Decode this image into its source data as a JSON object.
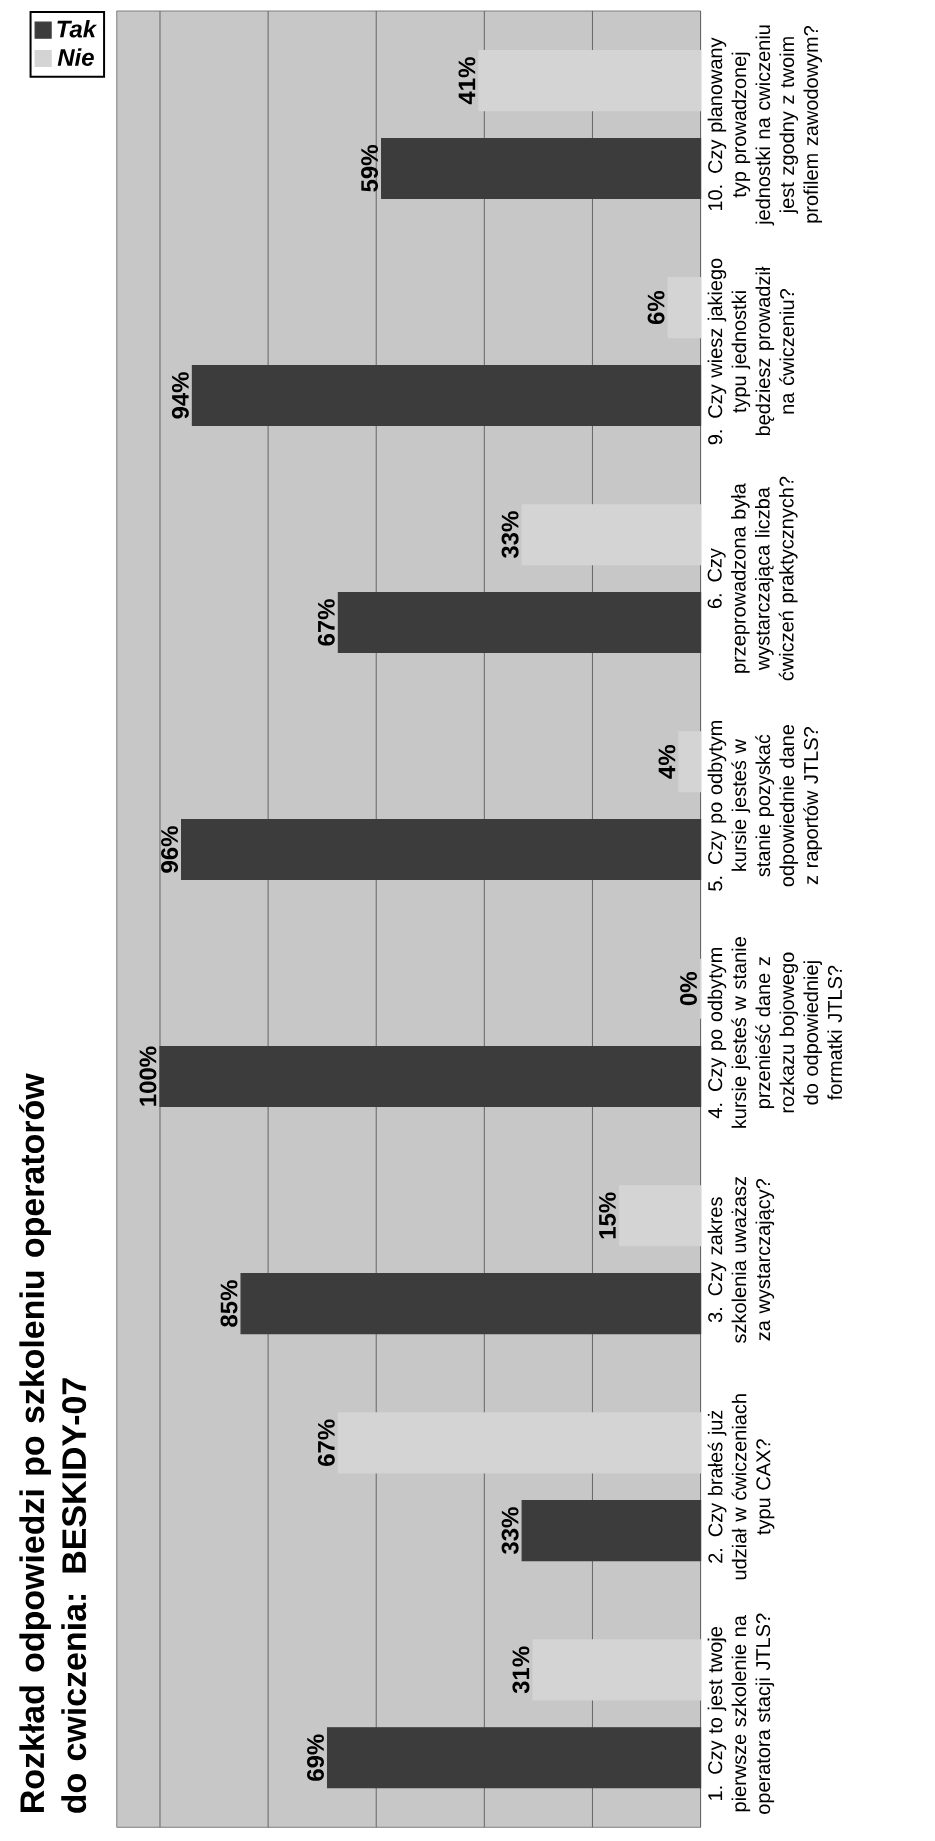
{
  "chart_data": {
    "type": "bar",
    "orientation": "horizontal",
    "title": "Rozkład odpowiedzi po szkoleniu operatorów do cwiczenia: BESKIDY-07",
    "categories": [
      "10. Czy planowany typ prowadzonej jednostki na cwiczeniu jest zgodny z twoim profilem zawodowym?",
      "9. Czy wiesz jakiego typu jednostki będziesz prowadził na ćwiczeniu?",
      "6. Czy przeprowadzona była wystarczająca liczba ćwiczeń praktycznych?",
      "5. Czy po odbytym kursie jesteś w stanie pozyskać odpowiednie dane z raportów JTLS?",
      "4. Czy po odbytym kursie jesteś w stanie przenieść dane z rozkazu bojowego do odpowiedniej formatki JTLS?",
      "3. Czy zakres szkolenia uważasz za wystarczający?",
      "2. Czy brałeś już udział w ćwiczeniach typu CAX?",
      "1. Czy to jest twoje pierwsze szkolenie na operatora stacji JTLS?"
    ],
    "series": [
      {
        "name": "Tak",
        "color": "#3c3c3c",
        "values": [
          59,
          94,
          67,
          96,
          100,
          85,
          33,
          69
        ],
        "value_labels": [
          "59%",
          "94%",
          "67%",
          "96%",
          "100%",
          "85%",
          "33%",
          "69%"
        ]
      },
      {
        "name": "Nie",
        "color": "#d4d4d4",
        "values": [
          41,
          6,
          33,
          4,
          0,
          15,
          67,
          31
        ],
        "value_labels": [
          "41%",
          "6%",
          "33%",
          "4%",
          "0%",
          "15%",
          "67%",
          "31%"
        ]
      }
    ],
    "xlim": [
      108,
      0
    ],
    "xticks": [
      {
        "value": 0,
        "label": null
      },
      {
        "value": 20,
        "label": null
      },
      {
        "value": 40,
        "label": null
      },
      {
        "value": 60,
        "label": null
      },
      {
        "value": 80,
        "label": null
      },
      {
        "value": 100,
        "label": null
      }
    ],
    "tick_labels": "y",
    "grid": "x",
    "legend": "top left"
  }
}
